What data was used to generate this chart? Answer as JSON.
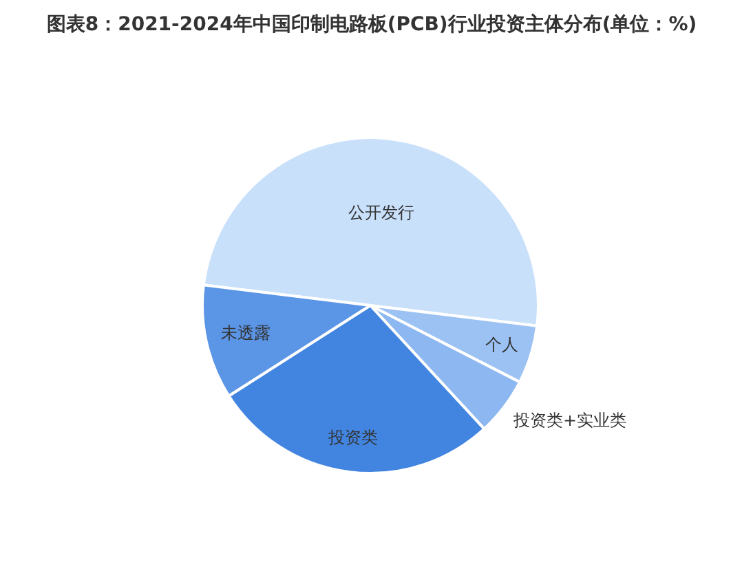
{
  "chart_data": {
    "type": "pie",
    "title": "图表8：2021-2024年中国印制电路板(PCB)行业投资主体分布(单位：%)",
    "categories": [
      "公开发行",
      "个人",
      "投资类+实业类",
      "投资类",
      "未透露"
    ],
    "values": [
      50,
      5.6,
      5.6,
      27.8,
      11
    ],
    "colors": [
      "#c9e0fb",
      "#9cc1f3",
      "#8db7f0",
      "#4285e0",
      "#5b95e6"
    ],
    "legend": false
  }
}
